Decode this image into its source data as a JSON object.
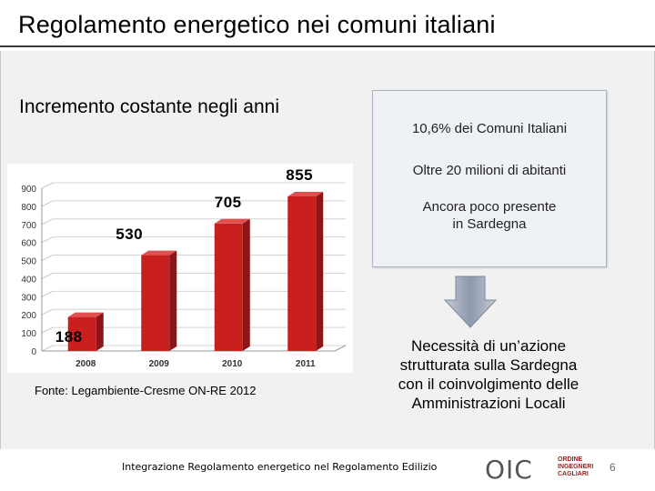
{
  "slide": {
    "title": "Regolamento energetico nei comuni italiani",
    "subtitle": "Incremento costante negli anni",
    "source": "Fonte: Legambiente-Cresme ON-RE 2012",
    "footer": "Integrazione Regolamento energetico nel Regolamento Edilizio",
    "page_number": "6"
  },
  "info_box": {
    "line1": "10,6% dei Comuni Italiani",
    "line2": "Oltre 20 milioni di abitanti",
    "line3a": "Ancora poco presente",
    "line3b": "in Sardegna"
  },
  "conclusion": {
    "line1": "Necessità di un’azione",
    "line2": "strutturata sulla Sardegna",
    "line3": "con il coinvolgimento delle",
    "line4": "Amministrazioni Locali"
  },
  "logo": {
    "mark": "OIC",
    "text_line1": "ORDINE",
    "text_line2": "INGEGNERI",
    "text_line3": "CAGLIARI"
  },
  "colors": {
    "bar": "#c9201f",
    "bar_side": "#8e1515",
    "bar_top": "#e05050",
    "arrow": "#9aa3b4"
  },
  "chart_data": {
    "type": "bar",
    "categories": [
      "2008",
      "2009",
      "2010",
      "2011"
    ],
    "values": [
      188,
      530,
      705,
      855
    ],
    "value_labels": [
      "188",
      "530",
      "705",
      "855"
    ],
    "y_ticks": [
      0,
      100,
      200,
      300,
      400,
      500,
      600,
      700,
      800,
      900
    ],
    "ylim": [
      0,
      900
    ],
    "grid": true,
    "legend": "none"
  }
}
